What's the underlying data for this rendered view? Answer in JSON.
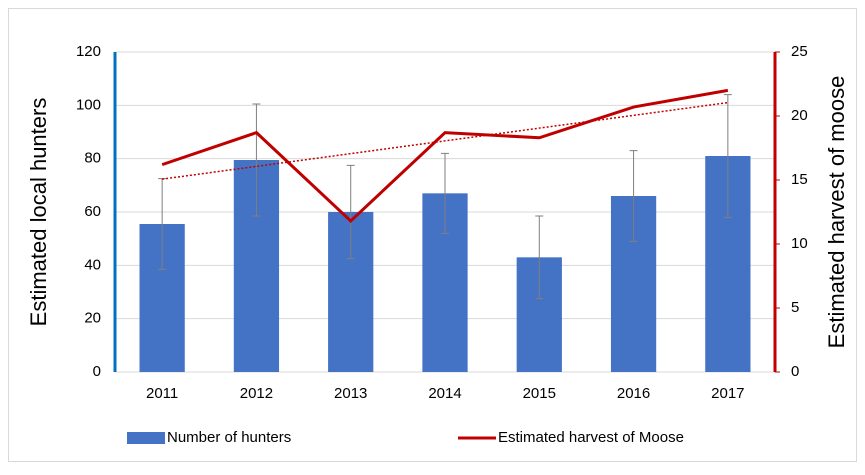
{
  "chart_data": {
    "type": "bar_line",
    "categories": [
      "2011",
      "2012",
      "2013",
      "2014",
      "2015",
      "2016",
      "2017"
    ],
    "series": [
      {
        "name": "Number of hunters",
        "type": "bar",
        "color": "#4472c4",
        "axis": "y",
        "values": [
          55.5,
          79.5,
          60,
          67,
          43,
          66,
          81
        ],
        "errors": [
          17,
          21,
          17.5,
          15,
          15.5,
          17,
          23
        ]
      },
      {
        "name": "Estimated harvest of Moose",
        "type": "line",
        "color": "#c00000",
        "axis": "y2",
        "values": [
          16.2,
          18.7,
          11.8,
          18.7,
          18.3,
          20.7,
          22
        ],
        "trendline": true
      }
    ],
    "ylabel": "Estimated local hunters",
    "y2label": "Estimated harvest of moose",
    "ylim": [
      0,
      120
    ],
    "yticks": [
      0,
      20,
      40,
      60,
      80,
      100,
      120
    ],
    "y2lim": [
      0,
      25
    ],
    "y2ticks": [
      0,
      5,
      10,
      15,
      20,
      25
    ],
    "grid": true,
    "legend": "bottom"
  }
}
